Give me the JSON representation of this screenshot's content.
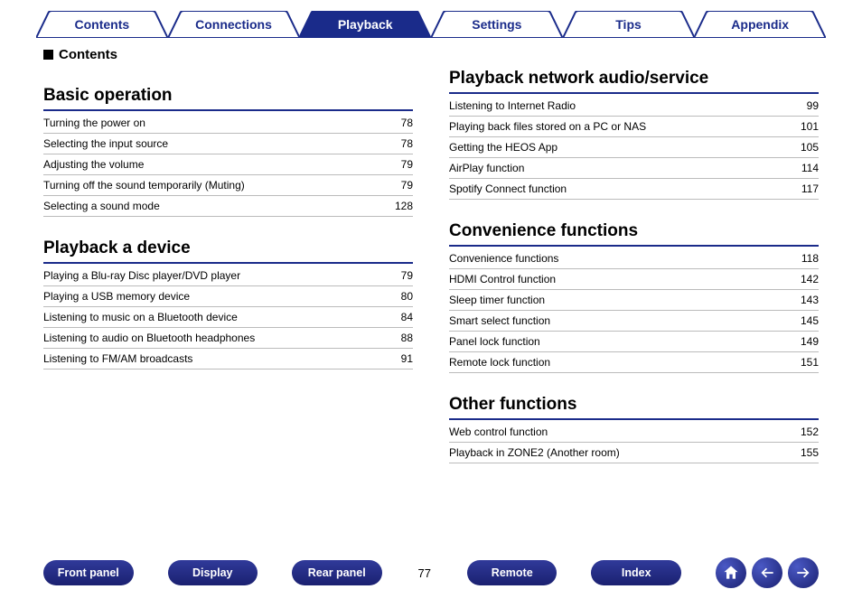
{
  "tabs": [
    {
      "label": "Contents",
      "active": false
    },
    {
      "label": "Connections",
      "active": false
    },
    {
      "label": "Playback",
      "active": true
    },
    {
      "label": "Settings",
      "active": false
    },
    {
      "label": "Tips",
      "active": false
    },
    {
      "label": "Appendix",
      "active": false
    }
  ],
  "colors": {
    "brand": "#1a2b8a",
    "tab_active_fill": "#1a2b8a",
    "tab_border": "#1a2b8a"
  },
  "contents_label": "Contents",
  "left_sections": [
    {
      "title": "Basic operation",
      "rows": [
        {
          "label": "Turning the power on",
          "page": "78"
        },
        {
          "label": "Selecting the input source",
          "page": "78"
        },
        {
          "label": "Adjusting the volume",
          "page": "79"
        },
        {
          "label": "Turning off the sound temporarily (Muting)",
          "page": "79"
        },
        {
          "label": "Selecting a sound mode",
          "page": "128"
        }
      ]
    },
    {
      "title": "Playback a device",
      "rows": [
        {
          "label": "Playing a Blu-ray Disc player/DVD player",
          "page": "79"
        },
        {
          "label": "Playing a USB memory device",
          "page": "80"
        },
        {
          "label": "Listening to music on a Bluetooth device",
          "page": "84"
        },
        {
          "label": "Listening to audio on Bluetooth headphones",
          "page": "88"
        },
        {
          "label": "Listening to FM/AM broadcasts",
          "page": "91"
        }
      ]
    }
  ],
  "right_sections": [
    {
      "title": "Playback network audio/service",
      "rows": [
        {
          "label": "Listening to Internet Radio",
          "page": "99"
        },
        {
          "label": "Playing back files stored on a PC or NAS",
          "page": "101"
        },
        {
          "label": "Getting the HEOS App",
          "page": "105"
        },
        {
          "label": "AirPlay function",
          "page": "114"
        },
        {
          "label": "Spotify Connect function",
          "page": "117"
        }
      ]
    },
    {
      "title": "Convenience functions",
      "rows": [
        {
          "label": "Convenience functions",
          "page": "118"
        },
        {
          "label": "HDMI Control function",
          "page": "142"
        },
        {
          "label": "Sleep timer function",
          "page": "143"
        },
        {
          "label": "Smart select function",
          "page": "145"
        },
        {
          "label": "Panel lock function",
          "page": "149"
        },
        {
          "label": "Remote lock function",
          "page": "151"
        }
      ]
    },
    {
      "title": "Other functions",
      "rows": [
        {
          "label": "Web control function",
          "page": "152"
        },
        {
          "label": "Playback in ZONE2 (Another room)",
          "page": "155"
        }
      ]
    }
  ],
  "bottom_buttons": [
    "Front panel",
    "Display",
    "Rear panel"
  ],
  "bottom_buttons_right": [
    "Remote",
    "Index"
  ],
  "page_number": "77"
}
